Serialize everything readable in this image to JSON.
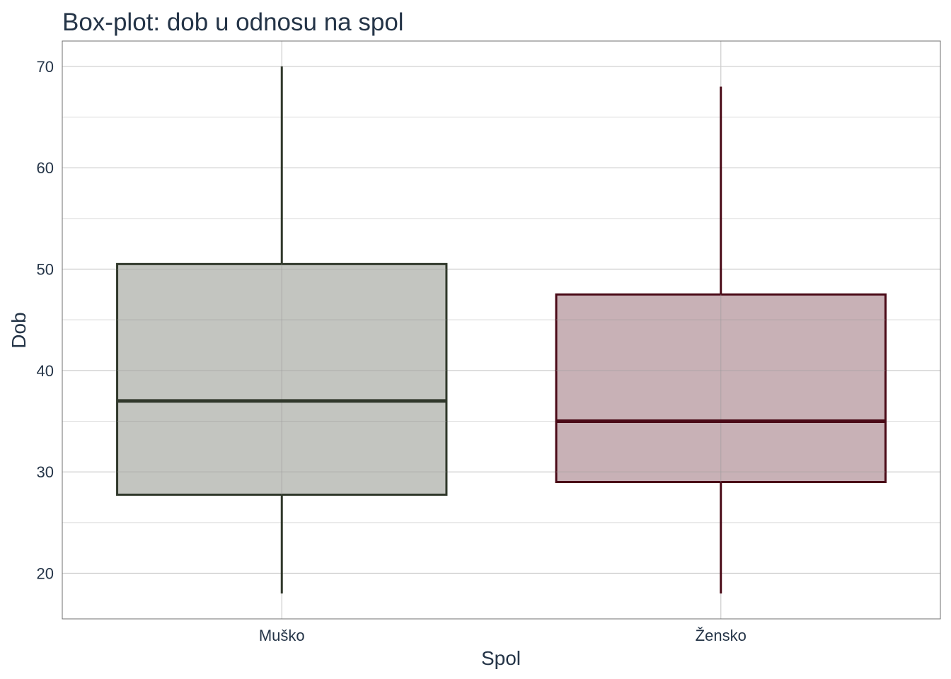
{
  "chart_data": {
    "type": "boxplot",
    "title": "Box-plot: dob u odnosu na spol",
    "xlabel": "Spol",
    "ylabel": "Dob",
    "categories": [
      "Muško",
      "Žensko"
    ],
    "boxes": [
      {
        "category": "Muško",
        "min": 18,
        "q1": 27.75,
        "median": 37,
        "q3": 50.5,
        "max": 70,
        "stroke": "#30382b",
        "fill": "#c3c5c0"
      },
      {
        "category": "Žensko",
        "min": 18,
        "q1": 29,
        "median": 35,
        "q3": 47.5,
        "max": 68,
        "stroke": "#4a0a17",
        "fill": "#c8b1b6"
      }
    ],
    "y_ticks": [
      20,
      30,
      40,
      50,
      60,
      70
    ],
    "ylim": [
      15.5,
      72.5
    ],
    "grid": true,
    "legend": "none"
  }
}
